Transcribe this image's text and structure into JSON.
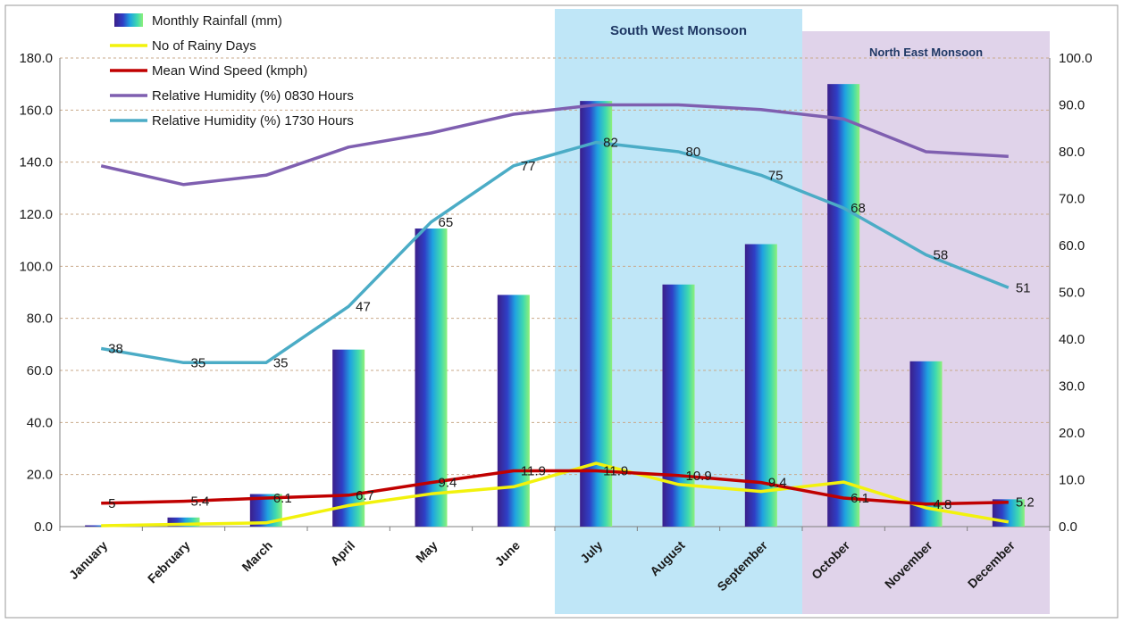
{
  "chart_data": {
    "type": "bar",
    "categories": [
      "January",
      "February",
      "March",
      "April",
      "May",
      "June",
      "July",
      "August",
      "September",
      "October",
      "November",
      "December"
    ],
    "y_left": {
      "min": 0,
      "max": 180,
      "step": 20,
      "ticks": [
        "0.0",
        "20.0",
        "40.0",
        "60.0",
        "80.0",
        "100.0",
        "120.0",
        "140.0",
        "160.0",
        "180.0"
      ]
    },
    "y_right": {
      "min": 0,
      "max": 100,
      "step": 10,
      "ticks": [
        "0.0",
        "10.0",
        "20.0",
        "30.0",
        "40.0",
        "50.0",
        "60.0",
        "70.0",
        "80.0",
        "90.0",
        "100.0"
      ]
    },
    "series": [
      {
        "name": "Monthly Rainfall (mm)",
        "kind": "bar",
        "axis": "left",
        "values": [
          0.5,
          3.5,
          12.5,
          68,
          114.5,
          89,
          163.5,
          93,
          108.5,
          170,
          63.5,
          10.5
        ]
      },
      {
        "name": "No of Rainy Days",
        "kind": "line",
        "axis": "right",
        "color": "#f2f20c",
        "values": [
          0.2,
          0.5,
          0.8,
          4.5,
          7,
          8.5,
          13.5,
          9,
          7.5,
          9.5,
          4,
          1
        ]
      },
      {
        "name": "Mean Wind Speed (kmph)",
        "kind": "line",
        "axis": "right",
        "color": "#c00000",
        "values": [
          5,
          5.4,
          6.1,
          6.7,
          9.4,
          11.9,
          11.9,
          10.9,
          9.4,
          6.1,
          4.8,
          5.2
        ],
        "labels": [
          "5",
          "5.4",
          "6.1",
          "6.7",
          "9.4",
          "11.9",
          "11.9",
          "10.9",
          "9.4",
          "6.1",
          "4.8",
          "5.2"
        ]
      },
      {
        "name": "Relative Humidity (%) 0830 Hours",
        "kind": "line",
        "axis": "right",
        "color": "#7f5fb0",
        "values": [
          77,
          73,
          75,
          81,
          84,
          88,
          90,
          90,
          89,
          87,
          80,
          79
        ]
      },
      {
        "name": "Relative Humidity (%) 1730 Hours",
        "kind": "line",
        "axis": "right",
        "color": "#4bacc6",
        "values": [
          38,
          35,
          35,
          47,
          65,
          77,
          82,
          80,
          75,
          68,
          58,
          51
        ],
        "labels": [
          "38",
          "35",
          "35",
          "47",
          "65",
          "77",
          "82",
          "80",
          "75",
          "68",
          "58",
          "51"
        ]
      }
    ],
    "bands": [
      {
        "label": "South West Monsoon",
        "from": "July",
        "to": "September",
        "color": "#bfe6f7"
      },
      {
        "label": "North East Monsoon",
        "from": "October",
        "to": "December",
        "color": "#e0d3ea"
      }
    ],
    "legend_position": "top-left",
    "grid": "dashed horizontal"
  }
}
